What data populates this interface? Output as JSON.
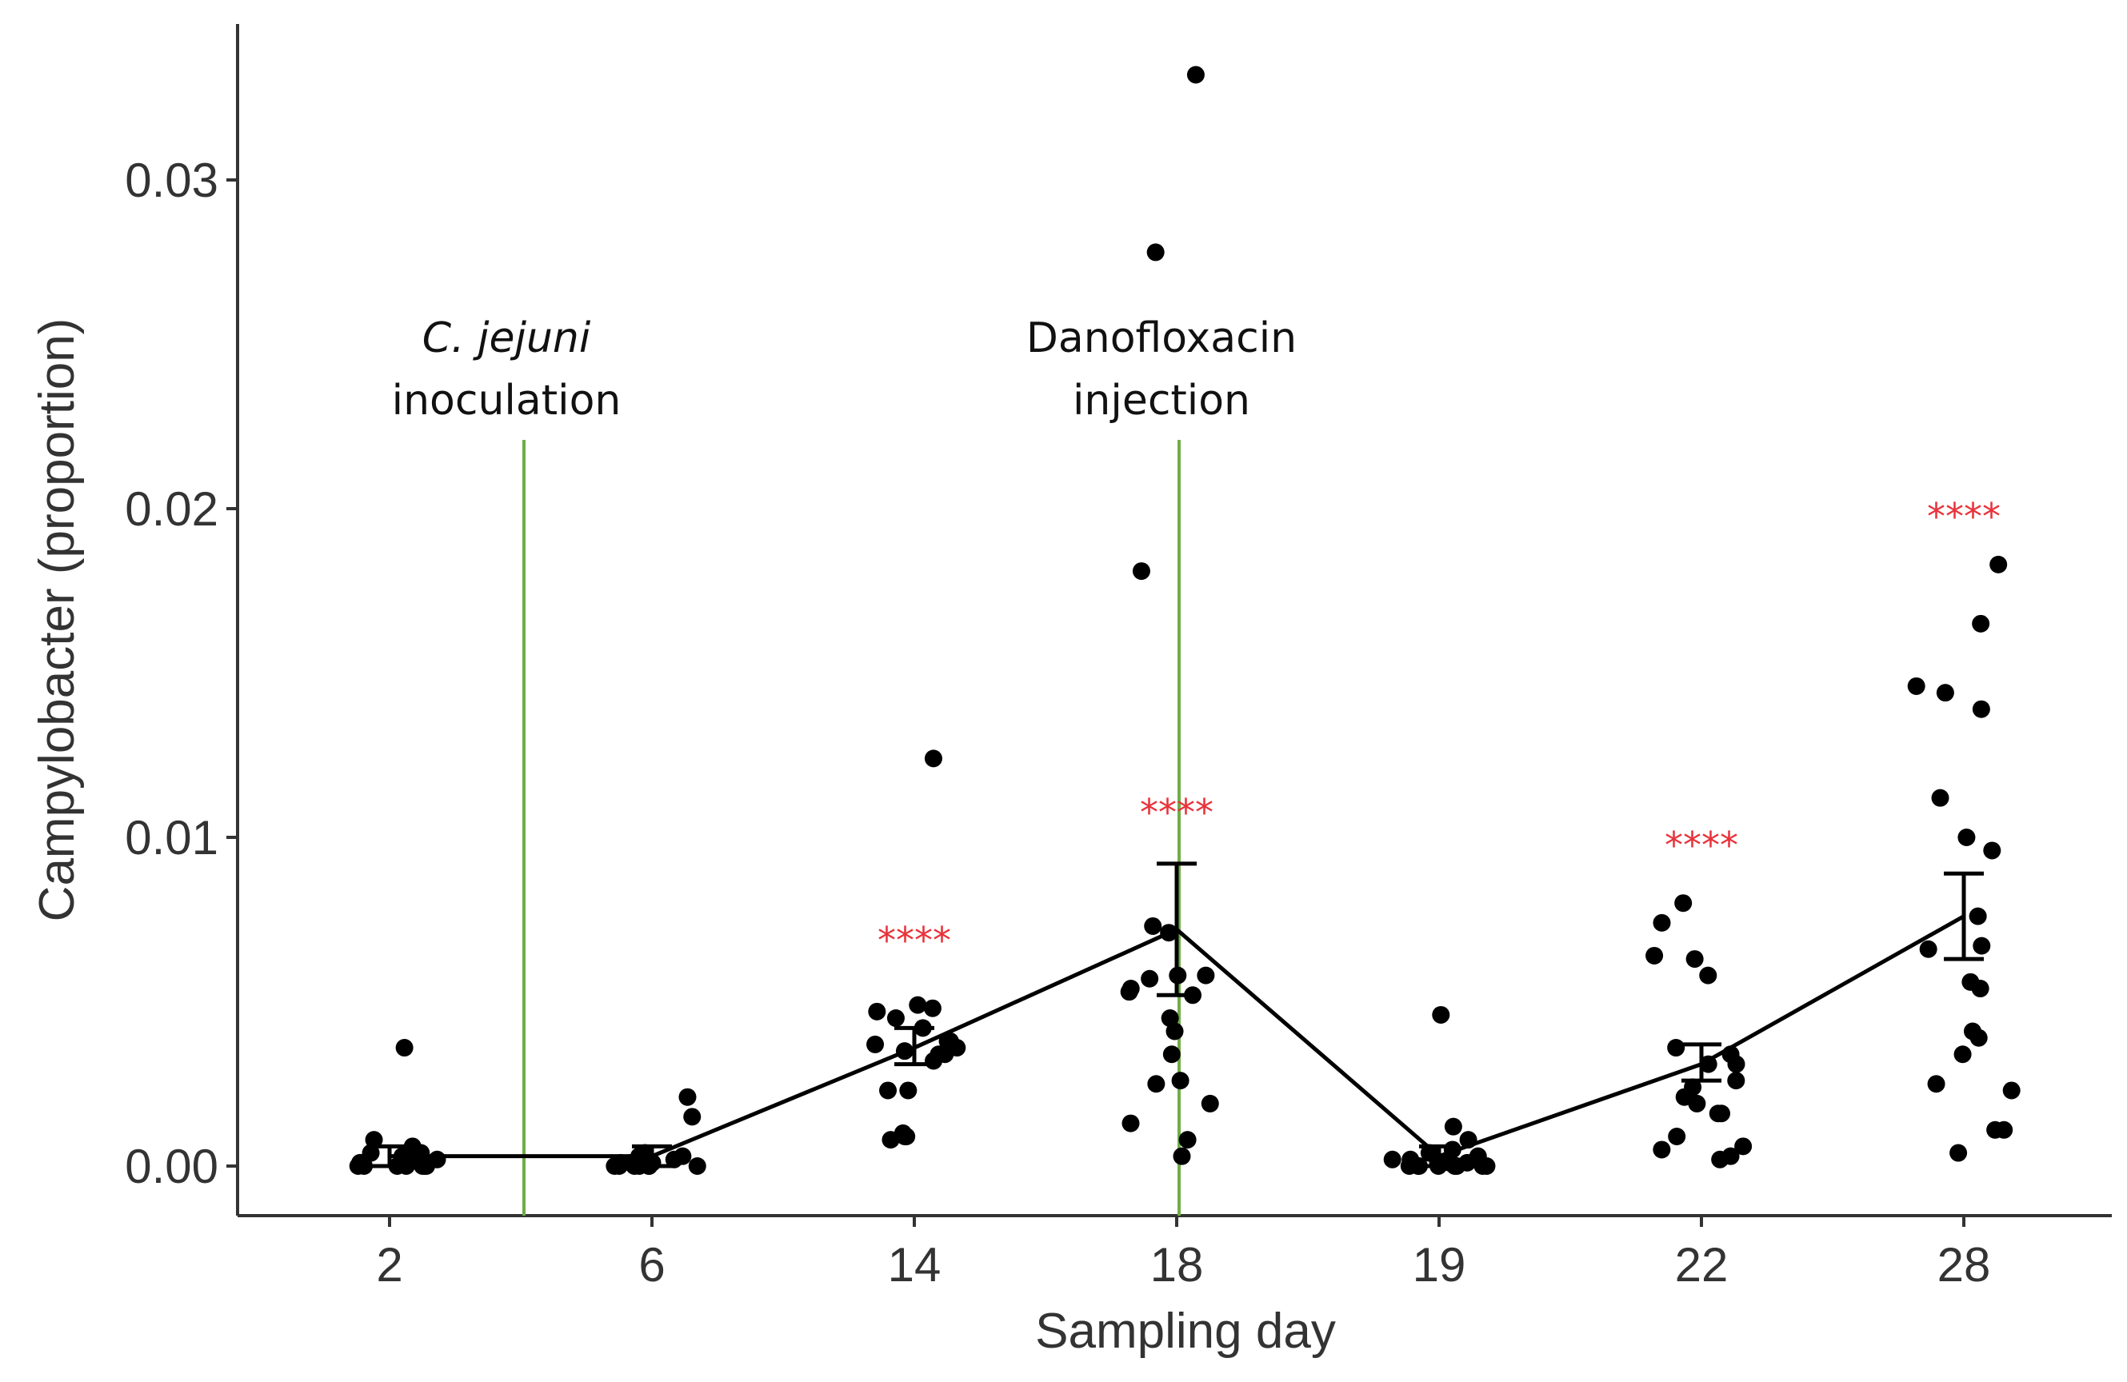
{
  "chart_data": {
    "type": "scatter",
    "xlabel": "Sampling day",
    "ylabel": "Campylobacter (proportion)",
    "ylim": [
      -0.0016,
      0.0345
    ],
    "y_ticks": [
      {
        "value": 0.0,
        "label": "0.00"
      },
      {
        "value": 0.01,
        "label": "0.01"
      },
      {
        "value": 0.02,
        "label": "0.02"
      },
      {
        "value": 0.03,
        "label": "0.03"
      }
    ],
    "categories": [
      "2",
      "6",
      "14",
      "18",
      "19",
      "22",
      "28"
    ],
    "points": [
      {
        "day": "2",
        "values": [
          0.0036,
          0.0004,
          0.0003,
          0.0002,
          0.0001,
          0.0,
          0.0,
          0.0,
          0.0002,
          0.0004,
          0.0006,
          0.0008,
          0.0002,
          0.0001,
          0.0,
          0.0,
          0.0001,
          0.0003,
          0.0,
          0.0
        ]
      },
      {
        "day": "6",
        "values": [
          0.0,
          0.0,
          0.0002,
          0.0003,
          0.0001,
          0.0,
          0.0015,
          0.0021,
          0.0002,
          0.0004,
          0.0003,
          0.0001,
          0.0,
          0.0,
          0.0003,
          0.0001,
          0.0,
          0.0
        ]
      },
      {
        "day": "14",
        "values": [
          0.0034,
          0.0023,
          0.0023,
          0.0038,
          0.0034,
          0.0045,
          0.0049,
          0.0038,
          0.0032,
          0.0047,
          0.0042,
          0.0037,
          0.0048,
          0.0035,
          0.0124,
          0.0008,
          0.001,
          0.0009,
          0.0009,
          0.0036
        ]
      },
      {
        "day": "18",
        "values": [
          0.0045,
          0.0054,
          0.0073,
          0.0181,
          0.0052,
          0.0053,
          0.0025,
          0.0278,
          0.0071,
          0.0057,
          0.0058,
          0.0041,
          0.0026,
          0.0019,
          0.0008,
          0.0332,
          0.0013,
          0.0003,
          0.0034,
          0.0058
        ]
      },
      {
        "day": "19",
        "values": [
          0.0,
          0.0,
          0.0001,
          0.0,
          0.0002,
          0.0046,
          0.0003,
          0.0001,
          0.0002,
          0.0005,
          0.0012,
          0.0004,
          0.0008,
          0.0,
          0.0,
          0.0001,
          0.0,
          0.0,
          0.0
        ]
      },
      {
        "day": "22",
        "values": [
          0.0058,
          0.0016,
          0.0031,
          0.0031,
          0.0002,
          0.0005,
          0.0006,
          0.0074,
          0.0009,
          0.0019,
          0.0003,
          0.008,
          0.0026,
          0.0036,
          0.0034,
          0.0024,
          0.0063,
          0.0064,
          0.0021,
          0.0016
        ]
      },
      {
        "day": "28",
        "values": [
          0.0011,
          0.0096,
          0.0023,
          0.0041,
          0.0183,
          0.0144,
          0.0146,
          0.0112,
          0.01,
          0.0076,
          0.0067,
          0.0054,
          0.0034,
          0.0039,
          0.0011,
          0.0139,
          0.0066,
          0.0056,
          0.0025,
          0.0165,
          0.0004
        ]
      }
    ],
    "mean_line": {
      "days": [
        "2",
        "6",
        "14",
        "18",
        "19",
        "22",
        "28"
      ],
      "mean": [
        0.0003,
        0.0003,
        0.0036,
        0.0072,
        0.0003,
        0.0031,
        0.0076
      ],
      "error_low": [
        0.0,
        0.0,
        0.0031,
        0.0052,
        0.0,
        0.0026,
        0.0063
      ],
      "error_high": [
        0.0006,
        0.0006,
        0.0042,
        0.0092,
        0.0006,
        0.0037,
        0.0089
      ]
    },
    "significance": [
      {
        "day": "14",
        "label": "****",
        "y": 0.0072
      },
      {
        "day": "18",
        "label": "****",
        "y": 0.0111
      },
      {
        "day": "22",
        "label": "****",
        "y": 0.0101
      },
      {
        "day": "28",
        "label": "****",
        "y": 0.0201
      }
    ],
    "annotations": [
      {
        "name": "inoculation",
        "position_between": [
          "2",
          "6"
        ],
        "line1": "C. jejuni",
        "line2": "inoculation",
        "line1_italic": true
      },
      {
        "name": "injection",
        "position_at": "18",
        "line1": "Danofloxacin",
        "line2": "injection",
        "line1_italic": false
      }
    ],
    "colors": {
      "points": "#000000",
      "mean_line": "#000000",
      "event_line": "#70ad47",
      "significance": "#e8343c",
      "axis": "#333333"
    }
  }
}
